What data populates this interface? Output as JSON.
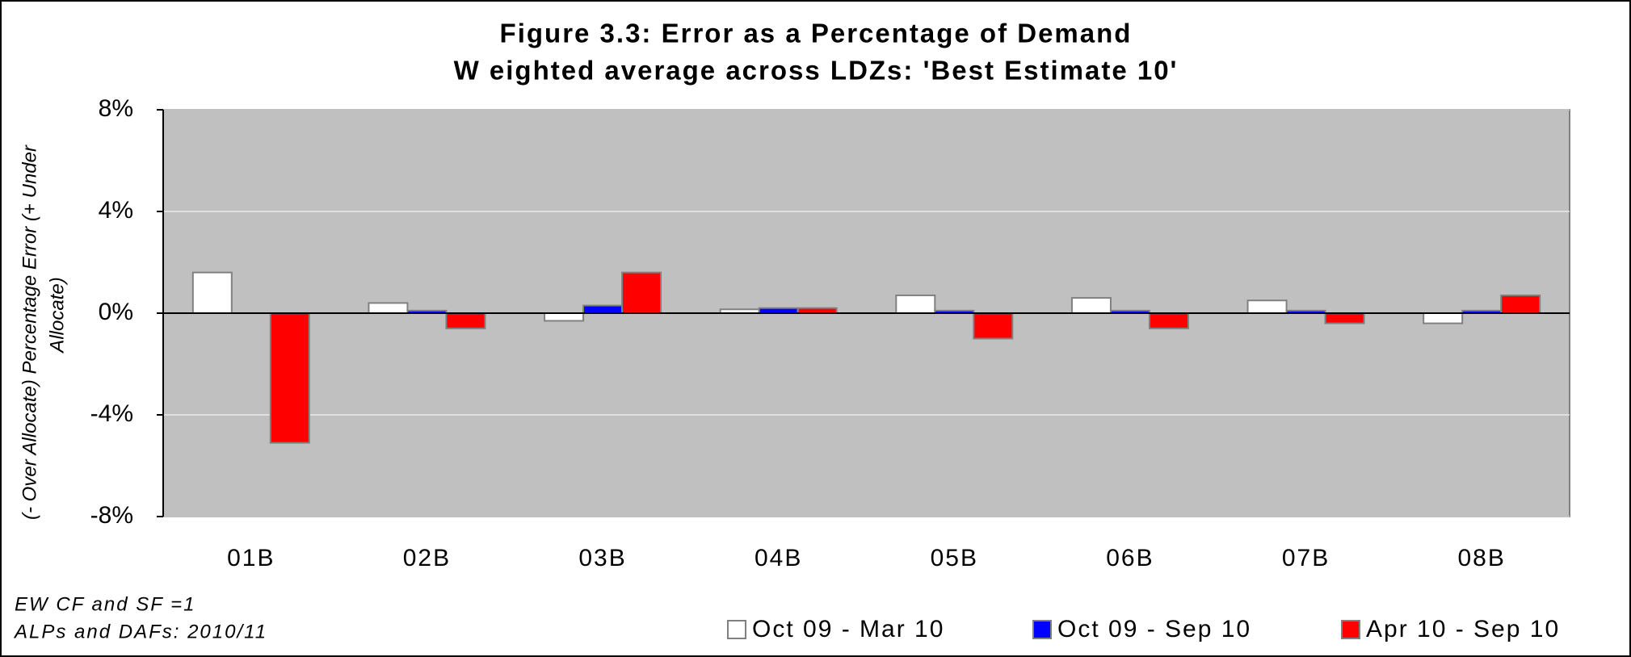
{
  "chart_data": {
    "type": "bar",
    "title": "Figure 3.3: Error as a Percentage of Demand",
    "subtitle": "W eighted average across LDZs: 'Best Estimate 10'",
    "y_label": [
      "(- Over Allocate) Percentage Error (+ Under",
      "Allocate)"
    ],
    "categories": [
      "01B",
      "02B",
      "03B",
      "04B",
      "05B",
      "06B",
      "07B",
      "08B"
    ],
    "series": [
      {
        "name": "Oct 09 - Mar 10",
        "color": "#ffffff",
        "values": [
          1.6,
          0.4,
          -0.3,
          0.15,
          0.7,
          0.6,
          0.5,
          -0.4
        ]
      },
      {
        "name": "Oct 09 - Sep 10",
        "color": "#0000ff",
        "values": [
          0,
          0.1,
          0.3,
          0.2,
          0.1,
          0.1,
          0.1,
          0.1
        ]
      },
      {
        "name": "Apr 10 - Sep 10",
        "color": "#ff0000",
        "values": [
          -5.1,
          -0.6,
          1.6,
          0.2,
          -1.0,
          -0.6,
          -0.4,
          0.7
        ]
      }
    ],
    "ylim": [
      -8,
      8
    ],
    "yticks": [
      {
        "value": -8,
        "label": "-8%"
      },
      {
        "value": -4,
        "label": "-4%"
      },
      {
        "value": 0,
        "label": "0%"
      },
      {
        "value": 4,
        "label": "4%"
      },
      {
        "value": 8,
        "label": "8%"
      }
    ],
    "grid": true,
    "notes": [
      "EW CF and SF =1",
      "ALPs and DAFs: 2010/11"
    ],
    "legend": "bottom-right"
  }
}
